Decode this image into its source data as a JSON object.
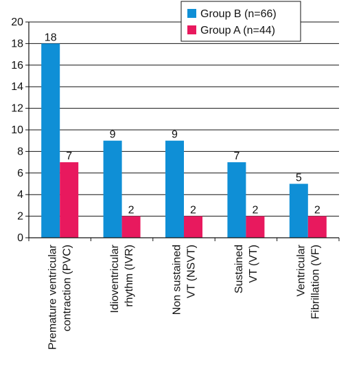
{
  "chart_data": {
    "type": "bar",
    "categories": [
      [
        "Premature ventricular",
        "contraction (PVC)"
      ],
      [
        "Idioventricular",
        "rhythm (IVR)"
      ],
      [
        "Non sustained",
        "VT (NSVT)"
      ],
      [
        "Sustained",
        "VT (VT)"
      ],
      [
        "Ventricular",
        "Fibrillation (VF)"
      ]
    ],
    "series": [
      {
        "name": "Group B (n=66)",
        "color": "#0f8fd6",
        "values": [
          18,
          9,
          9,
          7,
          5
        ]
      },
      {
        "name": "Group A (n=44)",
        "color": "#e8195e",
        "values": [
          7,
          2,
          2,
          2,
          2
        ]
      }
    ],
    "y_ticks": [
      "0",
      "2",
      "4",
      "6",
      "8",
      "10",
      "12",
      "14",
      "16",
      "18",
      "20"
    ],
    "ylim": [
      0,
      20
    ],
    "grid": true,
    "legend_position": "top-right",
    "title": "",
    "xlabel": "",
    "ylabel": ""
  }
}
